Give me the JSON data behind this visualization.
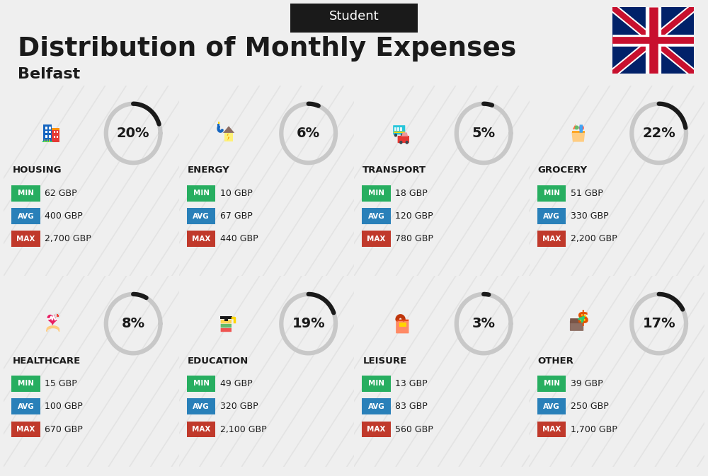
{
  "title": "Distribution of Monthly Expenses",
  "subtitle": "Belfast",
  "header_label": "Student",
  "bg_color": "#efefef",
  "categories": [
    {
      "name": "HOUSING",
      "percent": 20,
      "min_val": "62 GBP",
      "avg_val": "400 GBP",
      "max_val": "2,700 GBP",
      "row": 0,
      "col": 0
    },
    {
      "name": "ENERGY",
      "percent": 6,
      "min_val": "10 GBP",
      "avg_val": "67 GBP",
      "max_val": "440 GBP",
      "row": 0,
      "col": 1
    },
    {
      "name": "TRANSPORT",
      "percent": 5,
      "min_val": "18 GBP",
      "avg_val": "120 GBP",
      "max_val": "780 GBP",
      "row": 0,
      "col": 2
    },
    {
      "name": "GROCERY",
      "percent": 22,
      "min_val": "51 GBP",
      "avg_val": "330 GBP",
      "max_val": "2,200 GBP",
      "row": 0,
      "col": 3
    },
    {
      "name": "HEALTHCARE",
      "percent": 8,
      "min_val": "15 GBP",
      "avg_val": "100 GBP",
      "max_val": "670 GBP",
      "row": 1,
      "col": 0
    },
    {
      "name": "EDUCATION",
      "percent": 19,
      "min_val": "49 GBP",
      "avg_val": "320 GBP",
      "max_val": "2,100 GBP",
      "row": 1,
      "col": 1
    },
    {
      "name": "LEISURE",
      "percent": 3,
      "min_val": "13 GBP",
      "avg_val": "83 GBP",
      "max_val": "560 GBP",
      "row": 1,
      "col": 2
    },
    {
      "name": "OTHER",
      "percent": 17,
      "min_val": "39 GBP",
      "avg_val": "250 GBP",
      "max_val": "1,700 GBP",
      "row": 1,
      "col": 3
    }
  ],
  "min_color": "#27ae60",
  "avg_color": "#2980b9",
  "max_color": "#c0392b",
  "arc_color_filled": "#1a1a1a",
  "arc_color_empty": "#c8c8c8",
  "category_name_color": "#1a1a1a",
  "value_text_color": "#1a1a1a",
  "percent_text_color": "#1a1a1a",
  "stripe_color": "#d8d8d8",
  "stripe_alpha": 0.5
}
